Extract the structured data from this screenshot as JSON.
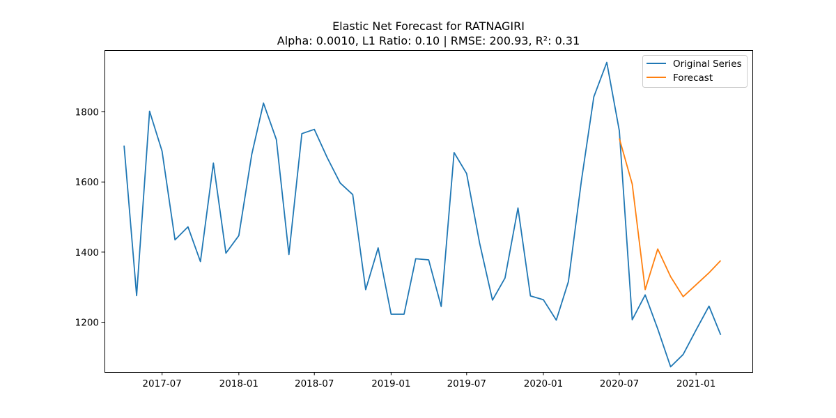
{
  "chart_data": {
    "type": "line",
    "title": "Elastic Net Forecast for RATNAGIRI",
    "subtitle": "Alpha: 0.0010, L1 Ratio: 0.10 | RMSE: 200.93, R²: 0.31",
    "xlabel": "",
    "ylabel": "",
    "x_ticks": [
      "2017-07",
      "2018-01",
      "2018-07",
      "2019-01",
      "2019-07",
      "2020-01",
      "2020-07",
      "2021-01"
    ],
    "y_ticks": [
      1200,
      1400,
      1600,
      1800
    ],
    "xlim": [
      "2017-02-13",
      "2021-05-16"
    ],
    "ylim": [
      1058,
      1976
    ],
    "grid": false,
    "legend_position": "top-right",
    "series": [
      {
        "name": "Original Series",
        "color": "#1f77b4",
        "x": [
          "2017-04",
          "2017-05",
          "2017-06",
          "2017-07",
          "2017-08",
          "2017-09",
          "2017-10",
          "2017-11",
          "2017-12",
          "2018-01",
          "2018-02",
          "2018-03",
          "2018-04",
          "2018-05",
          "2018-06",
          "2018-07",
          "2018-08",
          "2018-09",
          "2018-10",
          "2018-11",
          "2018-12",
          "2019-01",
          "2019-02",
          "2019-03",
          "2019-04",
          "2019-05",
          "2019-06",
          "2019-07",
          "2019-08",
          "2019-09",
          "2019-10",
          "2019-11",
          "2019-12",
          "2020-01",
          "2020-02",
          "2020-03",
          "2020-04",
          "2020-05",
          "2020-06",
          "2020-07",
          "2020-08",
          "2020-09",
          "2020-10",
          "2020-11",
          "2020-12",
          "2021-01",
          "2021-02",
          "2021-03"
        ],
        "values": [
          1704,
          1276,
          1802,
          1688,
          1435,
          1472,
          1373,
          1654,
          1397,
          1447,
          1679,
          1825,
          1721,
          1393,
          1738,
          1750,
          1669,
          1597,
          1564,
          1293,
          1412,
          1223,
          1223,
          1381,
          1378,
          1245,
          1684,
          1624,
          1426,
          1263,
          1326,
          1526,
          1275,
          1264,
          1206,
          1316,
          1603,
          1843,
          1941,
          1746,
          1207,
          1278,
          1181,
          1073,
          1108,
          1178,
          1246,
          1164
        ]
      },
      {
        "name": "Forecast",
        "color": "#ff7f0e",
        "x": [
          "2020-07",
          "2020-08",
          "2020-09",
          "2020-10",
          "2020-11",
          "2020-12",
          "2021-01",
          "2021-02",
          "2021-03"
        ],
        "values": [
          1724,
          1594,
          1293,
          1409,
          1330,
          1273,
          1307,
          1341,
          1376
        ]
      }
    ]
  }
}
